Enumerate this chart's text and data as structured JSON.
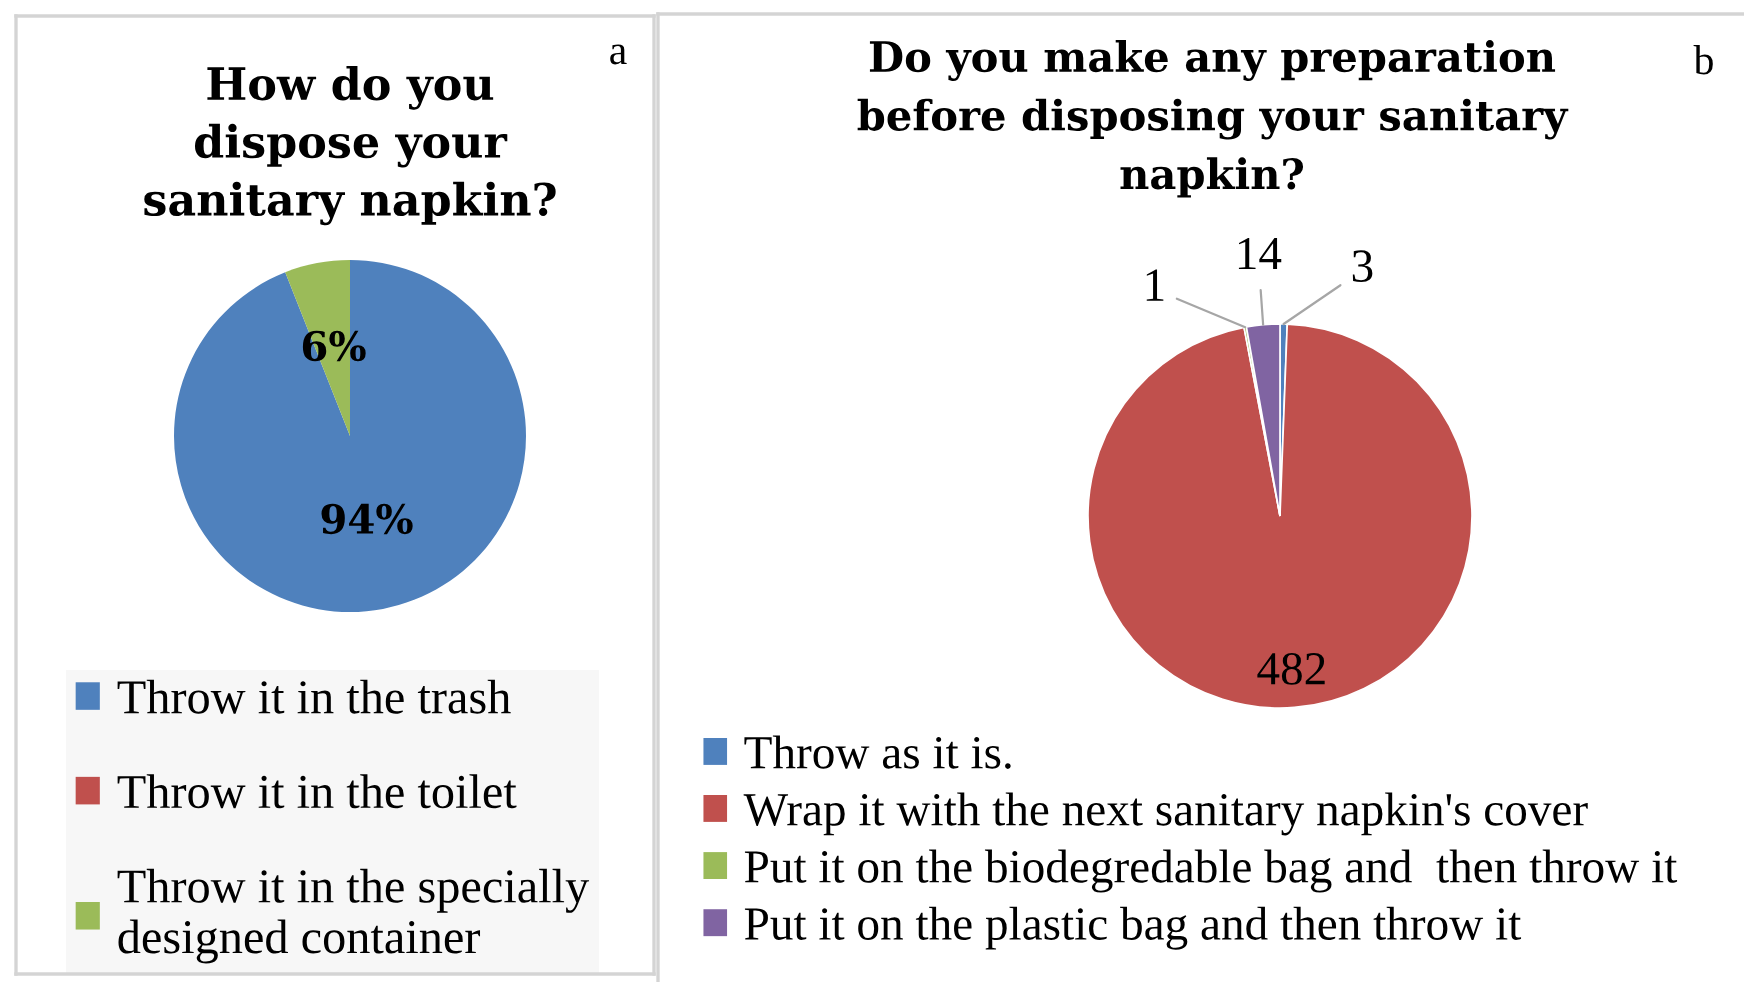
{
  "chart_data": [
    {
      "type": "pie",
      "title": "How do you dispose your sanitary napkin?",
      "categories": [
        "Throw it in the trash",
        "Throw it in the toilet",
        "Throw it in the specially designed container"
      ],
      "values": [
        94,
        0,
        6
      ],
      "colors": [
        "#4f81bd",
        "#c0504d",
        "#9bbb59"
      ],
      "value_labels": [
        "94%",
        null,
        "6%"
      ],
      "legend": "bottom",
      "annotations": [
        "a"
      ]
    },
    {
      "type": "pie",
      "title": "Do you make any preparation before disposing your sanitary napkin?",
      "categories": [
        "Throw as it is.",
        "Wrap it with the next sanitary napkin's cover",
        "Put it on the biodegredable bag and  then throw it",
        "Put it on the plastic bag and then throw it"
      ],
      "values": [
        3,
        482,
        1,
        14
      ],
      "colors": [
        "#4f81bd",
        "#c0504d",
        "#9bbb59",
        "#8064a2"
      ],
      "data_labels": true,
      "legend": "bottom",
      "annotations": [
        "b"
      ]
    }
  ]
}
